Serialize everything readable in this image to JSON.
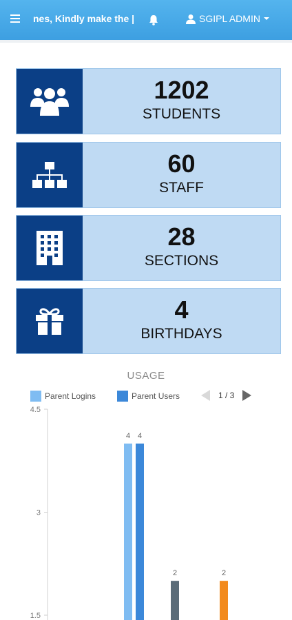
{
  "header": {
    "marquee_text": "nes, Kindly make the |",
    "user_label": "SGIPL ADMIN"
  },
  "stats": [
    {
      "value": "1202",
      "label": "STUDENTS",
      "icon": "users-icon"
    },
    {
      "value": "60",
      "label": "STAFF",
      "icon": "sitemap-icon"
    },
    {
      "value": "28",
      "label": "SECTIONS",
      "icon": "building-icon"
    },
    {
      "value": "4",
      "label": "BIRTHDAYS",
      "icon": "gift-icon"
    }
  ],
  "usage": {
    "title": "USAGE",
    "legend": [
      {
        "label": "Parent Logins",
        "color": "#7fbcf2"
      },
      {
        "label": "Parent Users",
        "color": "#3c88d9"
      }
    ],
    "pager": "1 / 3"
  },
  "chart_data": {
    "type": "bar",
    "title": "USAGE",
    "ylim": [
      1.5,
      4.5
    ],
    "yticks": [
      "4.5",
      "3",
      "1.5"
    ],
    "bars": [
      {
        "series": "Parent Logins",
        "value": 4,
        "label": "4",
        "color": "#7fbcf2"
      },
      {
        "series": "Parent Users",
        "value": 4,
        "label": "4",
        "color": "#3c88d9"
      },
      {
        "series": "",
        "value": 2,
        "label": "2",
        "color": "#5a6b78"
      },
      {
        "series": "",
        "value": 2,
        "label": "2",
        "color": "#f28a1d"
      }
    ],
    "grid": false,
    "legend_position": "top"
  }
}
